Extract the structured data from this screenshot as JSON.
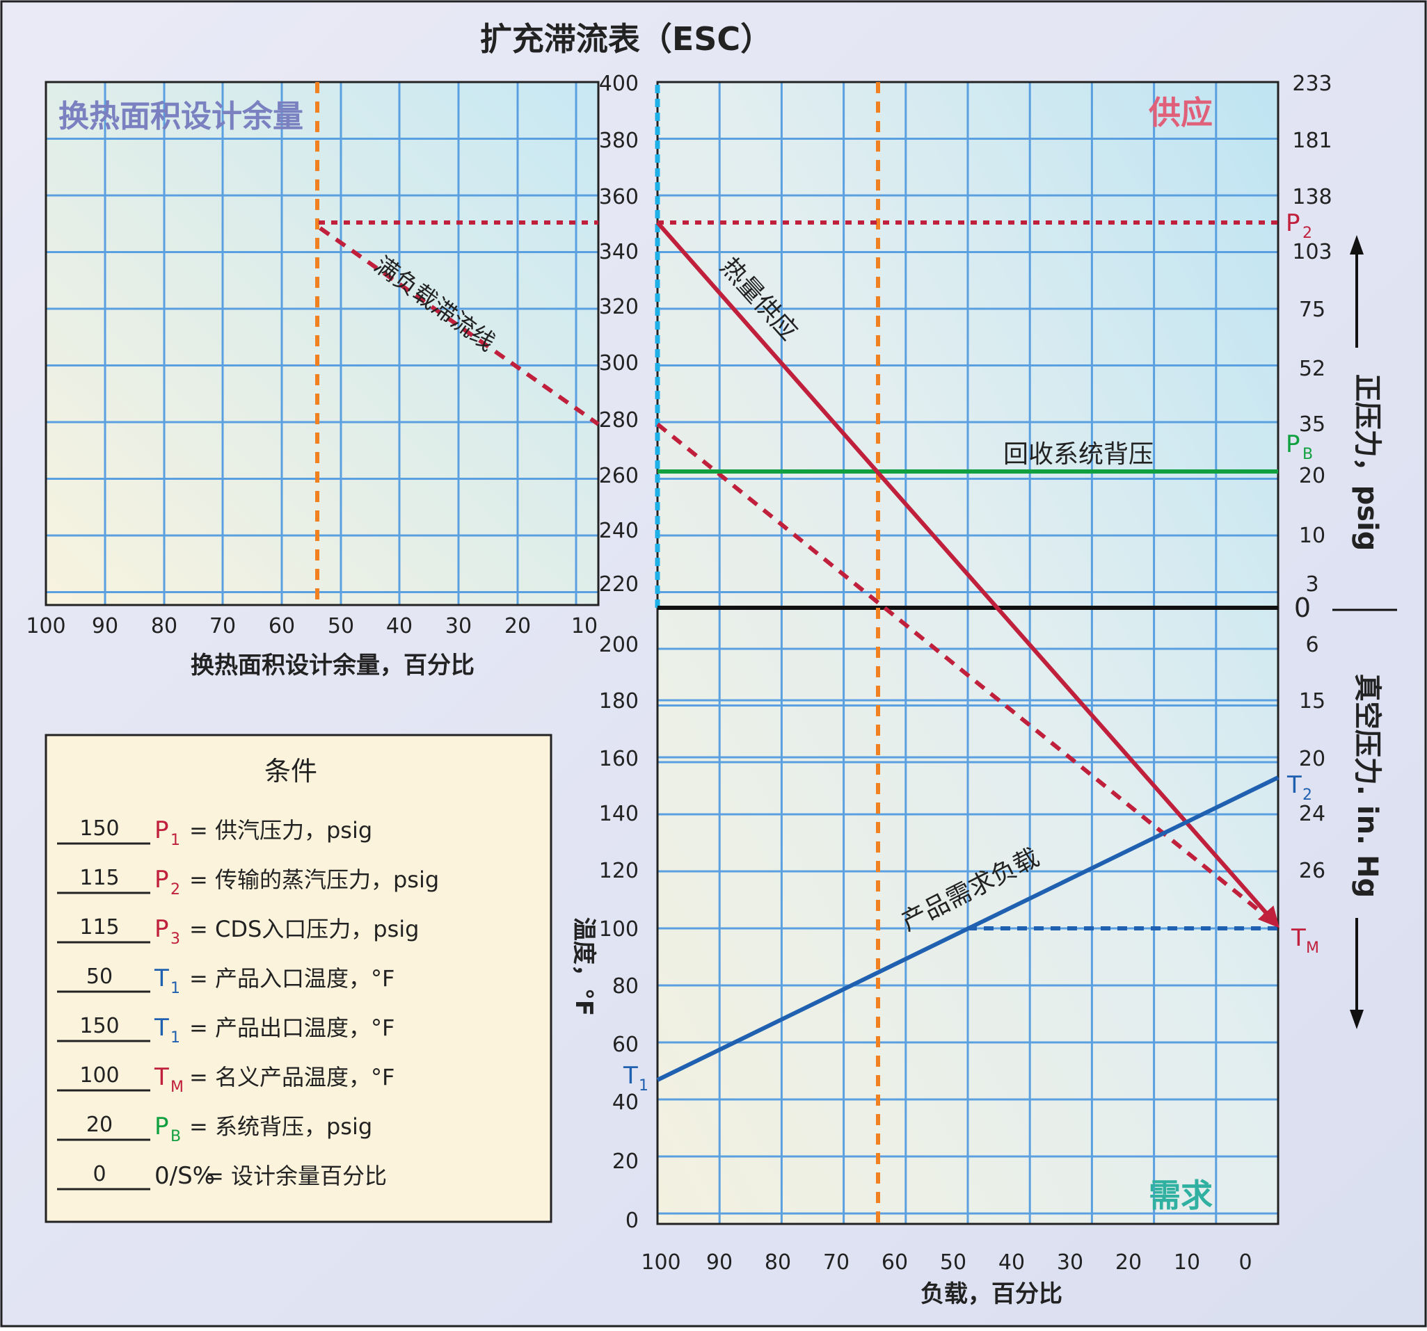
{
  "title": "扩充滞流表（ESC）",
  "colors": {
    "supply": "#c0203c",
    "demand_line": "#2060b0",
    "backpressure": "#10a040",
    "design_margin_line": "#f08020",
    "grid": "#5aa0e0",
    "supply_label": "#e0607a",
    "demand_label": "#30b0a0",
    "margin_label": "#7a80c0",
    "cyan_axis": "#20b0e8"
  },
  "left_panel": {
    "corner_label": "换热面积设计余量",
    "x_label": "换热面积设计余量，百分比",
    "x_ticks": [
      "100",
      "90",
      "80",
      "70",
      "60",
      "50",
      "40",
      "30",
      "20",
      "10"
    ],
    "dashed_line_label": "满负载滞流线"
  },
  "main_panel": {
    "supply_label": "供应",
    "demand_label": "需求",
    "x_label": "负载，百分比",
    "x_ticks": [
      "100",
      "90",
      "80",
      "70",
      "60",
      "50",
      "40",
      "30",
      "20",
      "10",
      "0"
    ],
    "temp_axis_label": "温度，°F",
    "temp_ticks": [
      "400",
      "380",
      "360",
      "340",
      "320",
      "300",
      "280",
      "260",
      "240",
      "220",
      "200",
      "180",
      "160",
      "140",
      "120",
      "100",
      "80",
      "60",
      "40",
      "20",
      "0"
    ],
    "pressure_ticks": [
      "233",
      "181",
      "138",
      "103",
      "75",
      "52",
      "35",
      "20",
      "10",
      "3",
      "0",
      "6",
      "15",
      "20",
      "24",
      "26"
    ],
    "positive_pressure_label": "正压力，psig",
    "vacuum_pressure_label": "真空压力. in. Hg",
    "supply_line_label": "热量供应",
    "demand_line_label": "产品需求负载",
    "backpressure_label": "回收系统背压",
    "markers": {
      "P2": {
        "main": "P",
        "sub": "2"
      },
      "PB": {
        "main": "P",
        "sub": "B"
      },
      "T2": {
        "main": "T",
        "sub": "2"
      },
      "TM": {
        "main": "T",
        "sub": "M"
      },
      "T1": {
        "main": "T",
        "sub": "1"
      }
    }
  },
  "conditions": {
    "title": "条件",
    "rows": [
      {
        "value": "150",
        "sym": "P",
        "sub": "1",
        "desc": "= 供汽压力，psig",
        "color": "#c0203c"
      },
      {
        "value": "115",
        "sym": "P",
        "sub": "2",
        "desc": "= 传输的蒸汽压力，psig",
        "color": "#c0203c"
      },
      {
        "value": "115",
        "sym": "P",
        "sub": "3",
        "desc": "= CDS入口压力，psig",
        "color": "#c0203c"
      },
      {
        "value": "50",
        "sym": "T",
        "sub": "1",
        "desc": "= 产品入口温度，°F",
        "color": "#2060b0"
      },
      {
        "value": "150",
        "sym": "T",
        "sub": "1",
        "desc": "= 产品出口温度，°F",
        "color": "#2060b0"
      },
      {
        "value": "100",
        "sym": "T",
        "sub": "M",
        "desc": "= 名义产品温度，°F",
        "color": "#c0203c"
      },
      {
        "value": "20",
        "sym": "P",
        "sub": "B",
        "desc": "= 系统背压，psig",
        "color": "#10a040"
      },
      {
        "value": "0",
        "sym": "0/S%",
        "sub": "",
        "desc": "= 设计余量百分比",
        "color": "#222222"
      }
    ]
  },
  "chart_data": {
    "type": "line",
    "title": "扩充滞流表（ESC）",
    "x_axis": {
      "label": "负载，百分比",
      "range": [
        100,
        0
      ],
      "ticks": [
        100,
        90,
        80,
        70,
        60,
        50,
        40,
        30,
        20,
        10,
        0
      ]
    },
    "y_axis": {
      "label": "温度，°F",
      "range": [
        0,
        400
      ]
    },
    "secondary_y_axis": {
      "positive": "正压力，psig",
      "vacuum": "真空压力. in. Hg"
    },
    "series": [
      {
        "name": "热量供应",
        "x": [
          100,
          0
        ],
        "y": [
          350,
          101
        ]
      },
      {
        "name": "产品需求负载",
        "x": [
          100,
          0
        ],
        "y": [
          50,
          150
        ]
      },
      {
        "name": "回收系统背压",
        "x": [
          100,
          0
        ],
        "y": [
          259,
          259
        ]
      }
    ],
    "left_panel": {
      "x_axis": {
        "label": "换热面积设计余量，百分比",
        "range": [
          100,
          10
        ]
      },
      "series": [
        {
          "name": "满负载滞流线",
          "x": [
            55,
            0
          ],
          "y": [
            350,
            101
          ]
        }
      ]
    },
    "grid": true
  }
}
